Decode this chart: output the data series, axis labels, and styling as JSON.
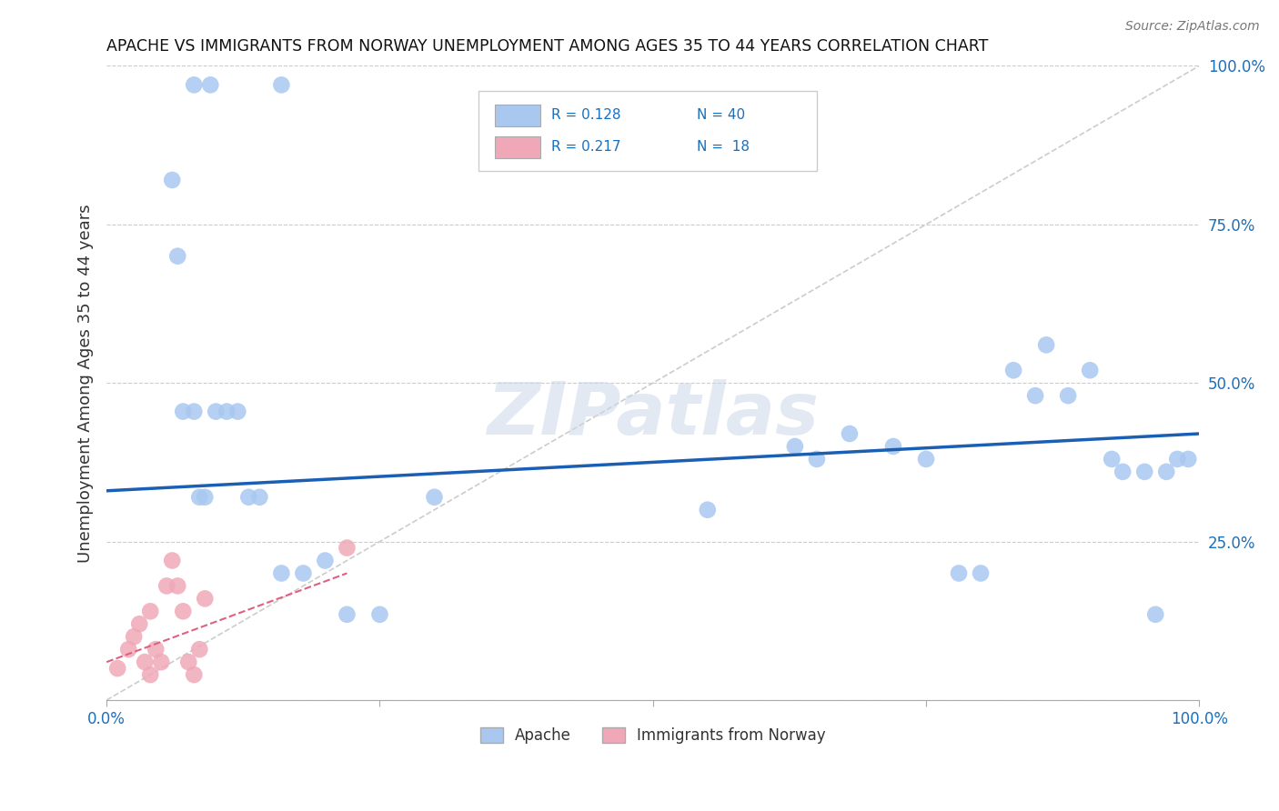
{
  "title": "APACHE VS IMMIGRANTS FROM NORWAY UNEMPLOYMENT AMONG AGES 35 TO 44 YEARS CORRELATION CHART",
  "source": "Source: ZipAtlas.com",
  "ylabel": "Unemployment Among Ages 35 to 44 years",
  "xlim": [
    0.0,
    1.0
  ],
  "ylim": [
    0.0,
    1.0
  ],
  "xticks": [
    0.0,
    0.25,
    0.5,
    0.75,
    1.0
  ],
  "xticklabels": [
    "0.0%",
    "",
    "",
    "",
    "100.0%"
  ],
  "ytick_positions": [
    0.0,
    0.25,
    0.5,
    0.75,
    1.0
  ],
  "ytick_labels": [
    "",
    "25.0%",
    "50.0%",
    "75.0%",
    "100.0%"
  ],
  "legend_r_apache": "R = 0.128",
  "legend_n_apache": "N = 40",
  "legend_r_norway": "R = 0.217",
  "legend_n_norway": "N =  18",
  "apache_color": "#a8c8f0",
  "norway_color": "#f0a8b8",
  "trend_apache_color": "#1a5fb4",
  "trend_norway_color": "#e06080",
  "diagonal_color": "#cccccc",
  "background_color": "#ffffff",
  "watermark": "ZIPatlas",
  "apache_x": [
    0.08,
    0.095,
    0.16,
    0.06,
    0.065,
    0.07,
    0.08,
    0.085,
    0.09,
    0.1,
    0.11,
    0.12,
    0.13,
    0.14,
    0.16,
    0.18,
    0.2,
    0.22,
    0.25,
    0.3,
    0.55,
    0.63,
    0.65,
    0.68,
    0.72,
    0.75,
    0.78,
    0.8,
    0.83,
    0.85,
    0.86,
    0.88,
    0.9,
    0.92,
    0.93,
    0.95,
    0.96,
    0.97,
    0.98,
    0.99
  ],
  "apache_y": [
    0.97,
    0.97,
    0.97,
    0.82,
    0.7,
    0.455,
    0.455,
    0.32,
    0.32,
    0.455,
    0.455,
    0.455,
    0.32,
    0.32,
    0.2,
    0.2,
    0.22,
    0.135,
    0.135,
    0.32,
    0.3,
    0.4,
    0.38,
    0.42,
    0.4,
    0.38,
    0.2,
    0.2,
    0.52,
    0.48,
    0.56,
    0.48,
    0.52,
    0.38,
    0.36,
    0.36,
    0.135,
    0.36,
    0.38,
    0.38
  ],
  "norway_x": [
    0.01,
    0.02,
    0.025,
    0.03,
    0.035,
    0.04,
    0.04,
    0.045,
    0.05,
    0.055,
    0.06,
    0.065,
    0.07,
    0.075,
    0.08,
    0.085,
    0.09,
    0.22
  ],
  "norway_y": [
    0.05,
    0.08,
    0.1,
    0.12,
    0.06,
    0.04,
    0.14,
    0.08,
    0.06,
    0.18,
    0.22,
    0.18,
    0.14,
    0.06,
    0.04,
    0.08,
    0.16,
    0.24
  ],
  "trend_apache_x0": 0.0,
  "trend_apache_y0": 0.33,
  "trend_apache_x1": 1.0,
  "trend_apache_y1": 0.42,
  "trend_norway_x0": 0.0,
  "trend_norway_x1": 0.22,
  "trend_norway_y0": 0.06,
  "trend_norway_y1": 0.2
}
